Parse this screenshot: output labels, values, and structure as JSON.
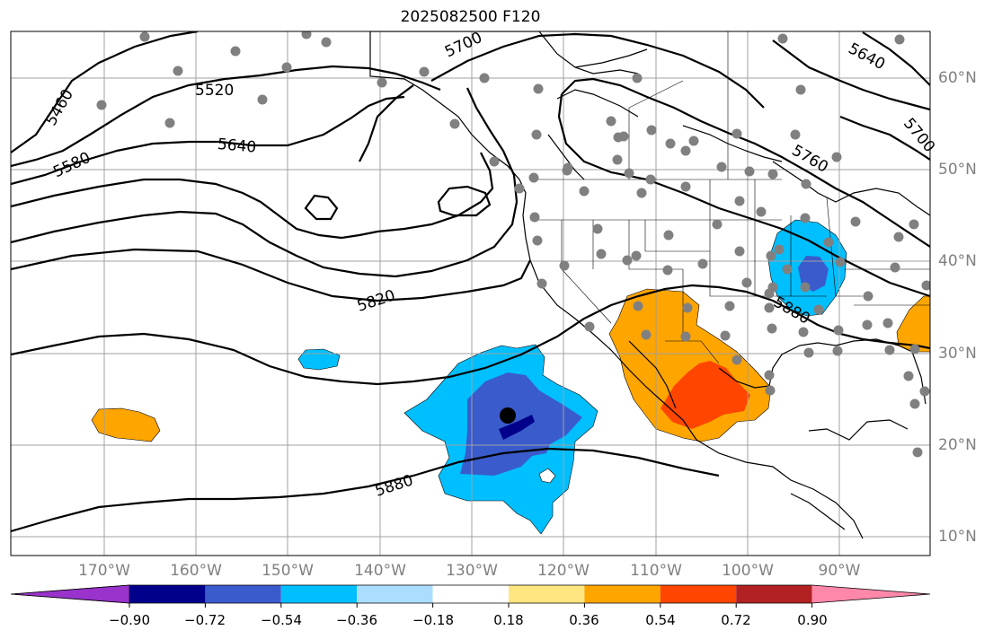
{
  "title": "2025082500 F120",
  "map": {
    "lon_labels": [
      "170°W",
      "160°W",
      "150°W",
      "140°W",
      "130°W",
      "120°W",
      "110°W",
      "100°W",
      "90°W"
    ],
    "lat_labels": [
      "60°N",
      "50°N",
      "40°N",
      "30°N",
      "20°N",
      "10°N"
    ],
    "contour_labels": [
      "5460",
      "5520",
      "5580",
      "5640",
      "5700",
      "5640",
      "5700",
      "5760",
      "5820",
      "5880",
      "5880"
    ],
    "colors": {
      "contour": "#000000",
      "grid": "#a0a0a0",
      "station": "#808080",
      "land_border": "#000000"
    },
    "center_marker": "black-dot"
  },
  "colorbar": {
    "colors": [
      "#9933cc",
      "#00008b",
      "#3a5bcc",
      "#00bfff",
      "#aaddff",
      "#ffffff",
      "#ffe680",
      "#ffa500",
      "#ff4500",
      "#b22222",
      "#ff88aa"
    ],
    "ticks": [
      "−0.90",
      "−0.72",
      "−0.54",
      "−0.36",
      "−0.18",
      "0.18",
      "0.36",
      "0.54",
      "0.72",
      "0.90"
    ]
  }
}
